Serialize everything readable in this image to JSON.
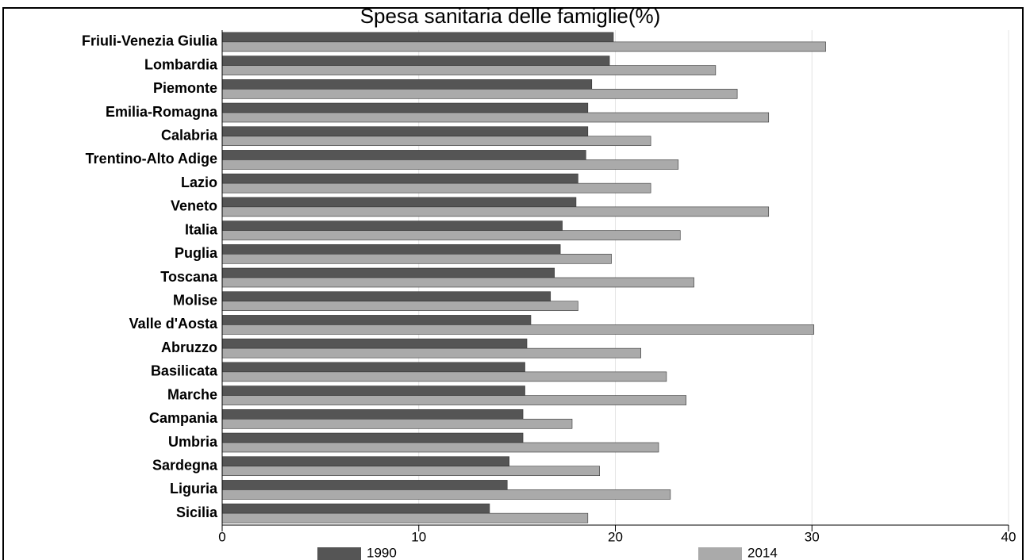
{
  "chart_data": {
    "type": "hbar",
    "title": "Spesa sanitaria delle famiglie(%)",
    "categories": [
      "Friuli-Venezia Giulia",
      "Lombardia",
      "Piemonte",
      "Emilia-Romagna",
      "Calabria",
      "Trentino-Alto Adige",
      "Lazio",
      "Veneto",
      "Italia",
      "Puglia",
      "Toscana",
      "Molise",
      "Valle d'Aosta",
      "Abruzzo",
      "Basilicata",
      "Marche",
      "Campania",
      "Umbria",
      "Sardegna",
      "Liguria",
      "Sicilia"
    ],
    "series": [
      {
        "name": "1990",
        "color": "#555555",
        "values": [
          19.9,
          19.7,
          18.8,
          18.6,
          18.6,
          18.5,
          18.1,
          18.0,
          17.3,
          17.2,
          16.9,
          16.7,
          15.7,
          15.5,
          15.4,
          15.4,
          15.3,
          15.3,
          14.6,
          14.5,
          13.6
        ]
      },
      {
        "name": "2014",
        "color": "#aaaaaa",
        "values": [
          30.7,
          25.1,
          26.2,
          27.8,
          21.8,
          23.2,
          21.8,
          27.8,
          23.3,
          19.8,
          24.0,
          18.1,
          30.1,
          21.3,
          22.6,
          23.6,
          17.8,
          22.2,
          19.2,
          22.8,
          18.6
        ]
      }
    ],
    "xlim": [
      0,
      40
    ],
    "xticks": [
      0,
      10,
      20,
      30,
      40
    ],
    "grid": true
  }
}
